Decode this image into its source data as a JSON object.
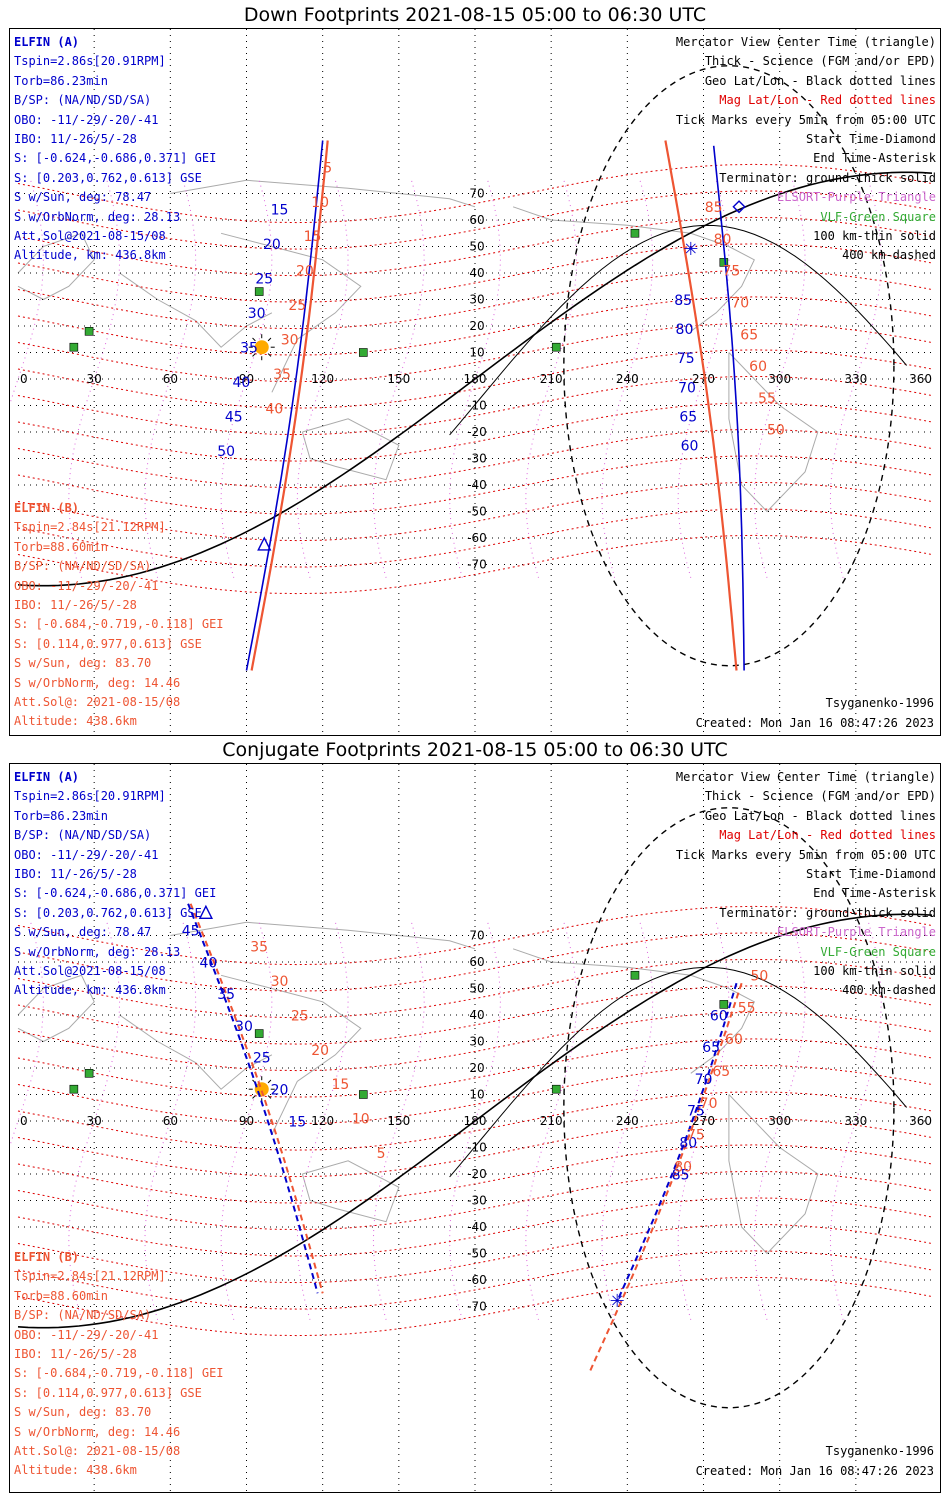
{
  "panels": [
    {
      "id": "down",
      "title": "Down Footprints 2021-08-15 05:00 to 06:30 UTC",
      "elfin_a": [
        "ELFIN (A)",
        "Tspin=2.86s[20.91RPM]",
        "Torb=86.23min",
        "B/SP: (NA/ND/SD/SA)",
        "OBO: -11/-29/-20/-41",
        "IBO: 11/-26/5/-28",
        "S: [-0.624,-0.686,0.371] GEI",
        "S: [0.203,0.762,0.613] GSE",
        "S w/Sun, deg: 78.47",
        "S w/OrbNorm, deg: 28.13",
        "Att.Sol@2021-08-15/08",
        "Altitude, km: 436.8km"
      ],
      "elfin_b": [
        "ELFIN (B)",
        "Tspin=2.84s[21.12RPM]",
        "Torb=88.60min",
        "B/SP: (NA/ND/SD/SA)",
        "OBO: -11/-29/-20/-41",
        "IBO: 11/-26/5/-28",
        "S: [-0.684,-0.719,-0.118] GEI",
        "S: [0.114,0.977,0.613] GSE",
        "S w/Sun, deg: 83.70",
        "S w/OrbNorm, deg: 14.46",
        "Att.Sol@: 2021-08-15/08",
        "Altitude: 438.6km"
      ],
      "legend": [
        "Mercator View Center Time (triangle)",
        "Thick - Science (FGM and/or EPD)",
        "Geo Lat/Lon - Black dotted lines",
        "Mag Lat/Lon - Red dotted lines",
        "Tick Marks every 5min from 05:00 UTC",
        "Start Time-Diamond",
        "End Time-Asterisk",
        "Terminator: ground-thick solid",
        "ELSORT-Purple Triangle",
        "VLF-Green Square",
        "100 km-thin solid",
        "400 km-dashed"
      ],
      "model": "Tsyganenko-1996",
      "created": "Created: Mon Jan 16 08:47:26 2023"
    },
    {
      "id": "conjugate",
      "title": "Conjugate Footprints 2021-08-15 05:00 to 06:30 UTC",
      "elfin_a": [
        "ELFIN (A)",
        "Tspin=2.86s[20.91RPM]",
        "Torb=86.23min",
        "B/SP: (NA/ND/SD/SA)",
        "OBO: -11/-29/-20/-41",
        "IBO: 11/-26/5/-28",
        "S: [-0.624,-0.686,0.371] GEI",
        "S: [0.203,0.762,0.613] GSE",
        "S w/Sun, deg: 78.47",
        "S w/OrbNorm, deg: 28.13",
        "Att.Sol@2021-08-15/08",
        "Altitude, km: 436.8km"
      ],
      "elfin_b": [
        "ELFIN (B)",
        "Tspin=2.84s[21.12RPM]",
        "Torb=88.60min",
        "B/SP: (NA/ND/SD/SA)",
        "OBO: -11/-29/-20/-41",
        "IBO: 11/-26/5/-28",
        "S: [-0.684,-0.719,-0.118] GEI",
        "S: [0.114,0.977,0.613] GSE",
        "S w/Sun, deg: 83.70",
        "S w/OrbNorm, deg: 14.46",
        "Att.Sol@: 2021-08-15/08",
        "Altitude: 438.6km"
      ],
      "legend": [
        "Mercator View Center Time (triangle)",
        "Thick - Science (FGM and/or EPD)",
        "Geo Lat/Lon - Black dotted lines",
        "Mag Lat/Lon - Red dotted lines",
        "Tick Marks every 5min from 05:00 UTC",
        "Start Time-Diamond",
        "End Time-Asterisk",
        "Terminator: ground-thick solid",
        "ELSORT-Purple Triangle",
        "VLF-Green Square",
        "100 km-thin solid",
        "400 km-dashed"
      ],
      "model": "Tsyganenko-1996",
      "created": "Created: Mon Jan 16 08:47:26 2023"
    }
  ],
  "axes": {
    "lon_ticks": [
      "0",
      "30",
      "60",
      "90",
      "120",
      "150",
      "180",
      "210",
      "240",
      "270",
      "300",
      "330",
      "360"
    ],
    "lat_ticks": [
      "70",
      "60",
      "50",
      "40",
      "30",
      "20",
      "10",
      "0",
      "-10",
      "-20",
      "-30",
      "-40",
      "-50",
      "-60",
      "-70"
    ]
  },
  "track_labels": {
    "down": {
      "a_west": [
        "15",
        "20",
        "25",
        "30",
        "35",
        "40",
        "45",
        "50"
      ],
      "b_west": [
        "5",
        "10",
        "15",
        "20",
        "25",
        "30",
        "35",
        "40"
      ],
      "a_east": [
        "85",
        "80",
        "75",
        "70",
        "65",
        "60"
      ],
      "b_east": [
        "85",
        "80",
        "75",
        "70",
        "65",
        "60",
        "55",
        "50"
      ]
    },
    "conjugate": {
      "a_west": [
        "45",
        "40",
        "35",
        "30",
        "25",
        "20",
        "15"
      ],
      "b_west": [
        "35",
        "30",
        "25",
        "20",
        "15",
        "10",
        "5"
      ],
      "a_east": [
        "60",
        "65",
        "70",
        "75",
        "80",
        "85"
      ],
      "b_east": [
        "50",
        "55",
        "60",
        "65",
        "70",
        "75",
        "80"
      ]
    }
  },
  "colors": {
    "elfin_a": "#0000cc",
    "elfin_b": "#ee5533",
    "geo_grid": "#000000",
    "mag_grid": "#dd0000",
    "elsort": "#cc66cc",
    "vlf": "#33aa33",
    "sun": "#ffaa00"
  }
}
